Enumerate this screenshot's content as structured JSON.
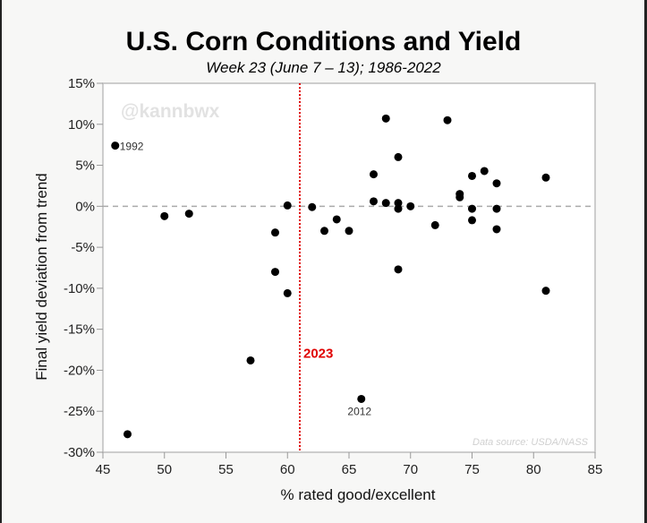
{
  "chart_data": {
    "type": "scatter",
    "title": "U.S. Corn Conditions and Yield",
    "subtitle": "Week 23 (June 7 – 13); 1986-2022",
    "xlabel": "% rated good/excellent",
    "ylabel": "Final yield deviation from trend",
    "xlim": [
      45,
      85
    ],
    "ylim": [
      -30,
      15
    ],
    "x_ticks": [
      45,
      50,
      55,
      60,
      65,
      70,
      75,
      80,
      85
    ],
    "x_tick_labels": [
      "45",
      "50",
      "55",
      "60",
      "65",
      "70",
      "75",
      "80",
      "85"
    ],
    "y_ticks": [
      15,
      10,
      5,
      0,
      -5,
      -10,
      -15,
      -20,
      -25,
      -30
    ],
    "y_tick_labels": [
      "15%",
      "10%",
      "5%",
      "0%",
      "-5%",
      "-10%",
      "-15%",
      "-20%",
      "-25%",
      "-30%"
    ],
    "grid": false,
    "reference_line_y": 0,
    "marker_line": {
      "x": 61,
      "label": "2023",
      "color": "#e00000"
    },
    "watermark": "@kannbwx",
    "source_note": "Data source: USDA/NASS",
    "point_color": "#000000",
    "points": [
      {
        "x": 46,
        "y": 7.4,
        "label": "1992"
      },
      {
        "x": 47,
        "y": -27.8
      },
      {
        "x": 50,
        "y": -1.2
      },
      {
        "x": 52,
        "y": -0.9
      },
      {
        "x": 57,
        "y": -18.8
      },
      {
        "x": 59,
        "y": -3.2
      },
      {
        "x": 59,
        "y": -8.0
      },
      {
        "x": 60,
        "y": 0.1
      },
      {
        "x": 60,
        "y": -10.6
      },
      {
        "x": 62,
        "y": -0.1
      },
      {
        "x": 63,
        "y": -3.0
      },
      {
        "x": 64,
        "y": -1.6
      },
      {
        "x": 65,
        "y": -3.0
      },
      {
        "x": 66,
        "y": -23.5,
        "label": "2012"
      },
      {
        "x": 67,
        "y": 3.9
      },
      {
        "x": 67,
        "y": 0.6
      },
      {
        "x": 68,
        "y": 10.7
      },
      {
        "x": 68,
        "y": 0.4
      },
      {
        "x": 69,
        "y": 6.0
      },
      {
        "x": 69,
        "y": 0.4
      },
      {
        "x": 69,
        "y": -0.3
      },
      {
        "x": 69,
        "y": -7.7
      },
      {
        "x": 70,
        "y": 0.0
      },
      {
        "x": 72,
        "y": -2.3
      },
      {
        "x": 73,
        "y": 10.5
      },
      {
        "x": 74,
        "y": 1.5
      },
      {
        "x": 74,
        "y": 1.1
      },
      {
        "x": 75,
        "y": 3.7
      },
      {
        "x": 75,
        "y": -0.3
      },
      {
        "x": 75,
        "y": -1.7
      },
      {
        "x": 76,
        "y": 4.3
      },
      {
        "x": 77,
        "y": 2.8
      },
      {
        "x": 77,
        "y": -0.3
      },
      {
        "x": 77,
        "y": -2.8
      },
      {
        "x": 81,
        "y": 3.5
      },
      {
        "x": 81,
        "y": -10.3
      }
    ]
  }
}
